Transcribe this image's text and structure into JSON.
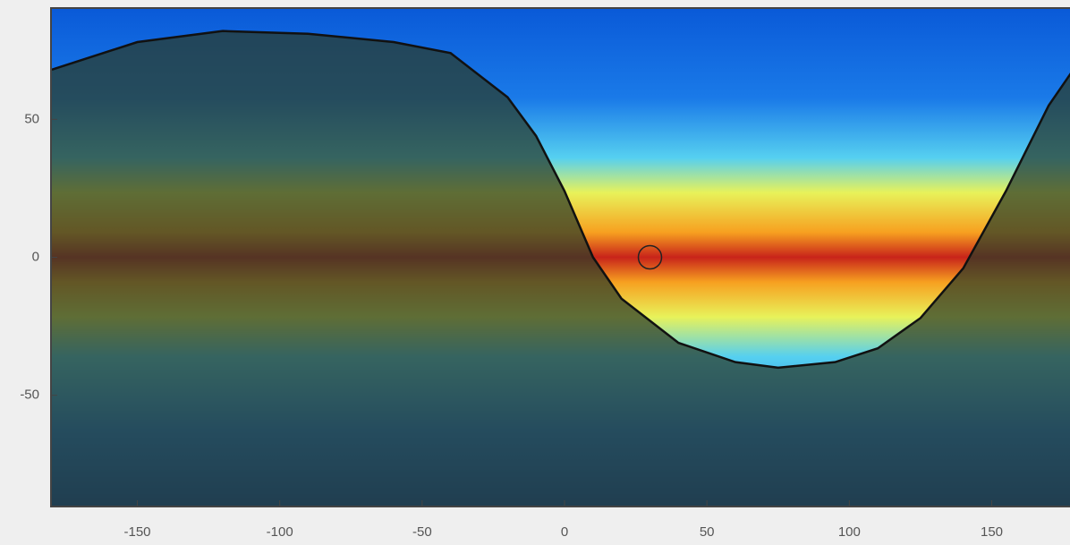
{
  "chart_data": {
    "type": "skymap",
    "xlim": [
      -180,
      180
    ],
    "ylim": [
      -90,
      90
    ],
    "xticks": [
      -150,
      -100,
      -50,
      0,
      50,
      100,
      150
    ],
    "yticks": [
      50,
      0,
      -50
    ],
    "boundary": {
      "color": "#111111",
      "x": [
        -180,
        -150,
        -120,
        -90,
        -60,
        -40,
        -20,
        -10,
        0,
        10,
        20,
        40,
        60,
        75,
        95,
        110,
        125,
        140,
        155,
        170,
        180
      ],
      "y": [
        68,
        78,
        82,
        81,
        78,
        74,
        58,
        44,
        24,
        0,
        -15,
        -31,
        -38,
        -40,
        -38,
        -33,
        -22,
        -4,
        24,
        55,
        70
      ]
    },
    "marker": {
      "x": 30,
      "y": 0,
      "color": "#222222"
    }
  }
}
